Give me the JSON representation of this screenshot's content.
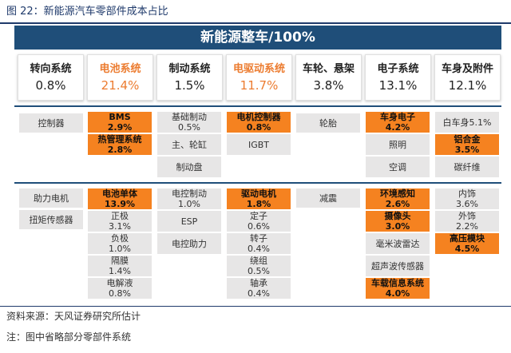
{
  "figure_title": "图 22：新能源汽车零部件成本占比",
  "banner": "新能源整车/100%",
  "categories": [
    {
      "name": "转向系统",
      "pct": "0.8%"
    },
    {
      "name": "电池系统",
      "pct": "21.4%"
    },
    {
      "name": "制动系统",
      "pct": "1.5%"
    },
    {
      "name": "电驱动系统",
      "pct": "11.7%"
    },
    {
      "name": "车轮、悬架",
      "pct": "3.8%"
    },
    {
      "name": "电子系统",
      "pct": "13.1%"
    },
    {
      "name": "车身及附件",
      "pct": "12.1%"
    }
  ],
  "parts": {
    "steer": [
      "控制器",
      "助力电机",
      "扭矩传感器"
    ],
    "battery": [
      {
        "name": "BMS",
        "pct": "2.9%"
      },
      {
        "name": "热管理系统",
        "pct": "2.8%"
      },
      {
        "name": "电池单体",
        "pct": "13.9%"
      },
      {
        "name": "正极",
        "pct": "3.1%"
      },
      {
        "name": "负极",
        "pct": "1.0%"
      },
      {
        "name": "隔膜",
        "pct": "1.4%"
      },
      {
        "name": "电解液",
        "pct": "0.8%"
      }
    ],
    "brake": [
      {
        "name": "基础制动",
        "pct": "0.5%"
      },
      {
        "name": "主、轮缸"
      },
      {
        "name": "制动盘"
      },
      {
        "name": "电控制动",
        "pct": "1.0%"
      },
      {
        "name": "ESP"
      },
      {
        "name": "电控助力"
      }
    ],
    "drive": [
      {
        "name": "电机控制器",
        "pct": "0.8%"
      },
      {
        "name": "IGBT"
      },
      {
        "name": "驱动电机",
        "pct": "1.8%"
      },
      {
        "name": "定子",
        "pct": "0.6%"
      },
      {
        "name": "转子",
        "pct": "0.4%"
      },
      {
        "name": "绕组",
        "pct": "0.5%"
      },
      {
        "name": "轴承",
        "pct": "0.4%"
      }
    ],
    "wheel": [
      "轮胎",
      "减震"
    ],
    "elec": [
      {
        "name": "车身电子",
        "pct": "4.2%"
      },
      {
        "name": "照明"
      },
      {
        "name": "空调"
      },
      {
        "name": "环境感知",
        "pct": "2.6%"
      },
      {
        "name": "摄像头",
        "pct": "3.0%"
      },
      {
        "name": "毫米波雷达"
      },
      {
        "name": "超声波传感器"
      },
      {
        "name": "车载信息系统",
        "pct": "4.0%"
      }
    ],
    "body": [
      {
        "name": "白车身5.1%"
      },
      {
        "name": "铝合金",
        "pct": "3.5%"
      },
      {
        "name": "碳纤维"
      },
      {
        "name": "内饰",
        "pct": "3.6%"
      },
      {
        "name": "外饰",
        "pct": "2.2%"
      },
      {
        "name": "高压模块",
        "pct": "4.5%"
      }
    ]
  },
  "colors": {
    "accent": "#f58220",
    "header": "#1f4e79",
    "neutral": "#e7e6e6",
    "highlight_text": "#ec7c30"
  },
  "source": "资料来源：天风证券研究所估计",
  "note": "注：图中省略部分零部件系统"
}
